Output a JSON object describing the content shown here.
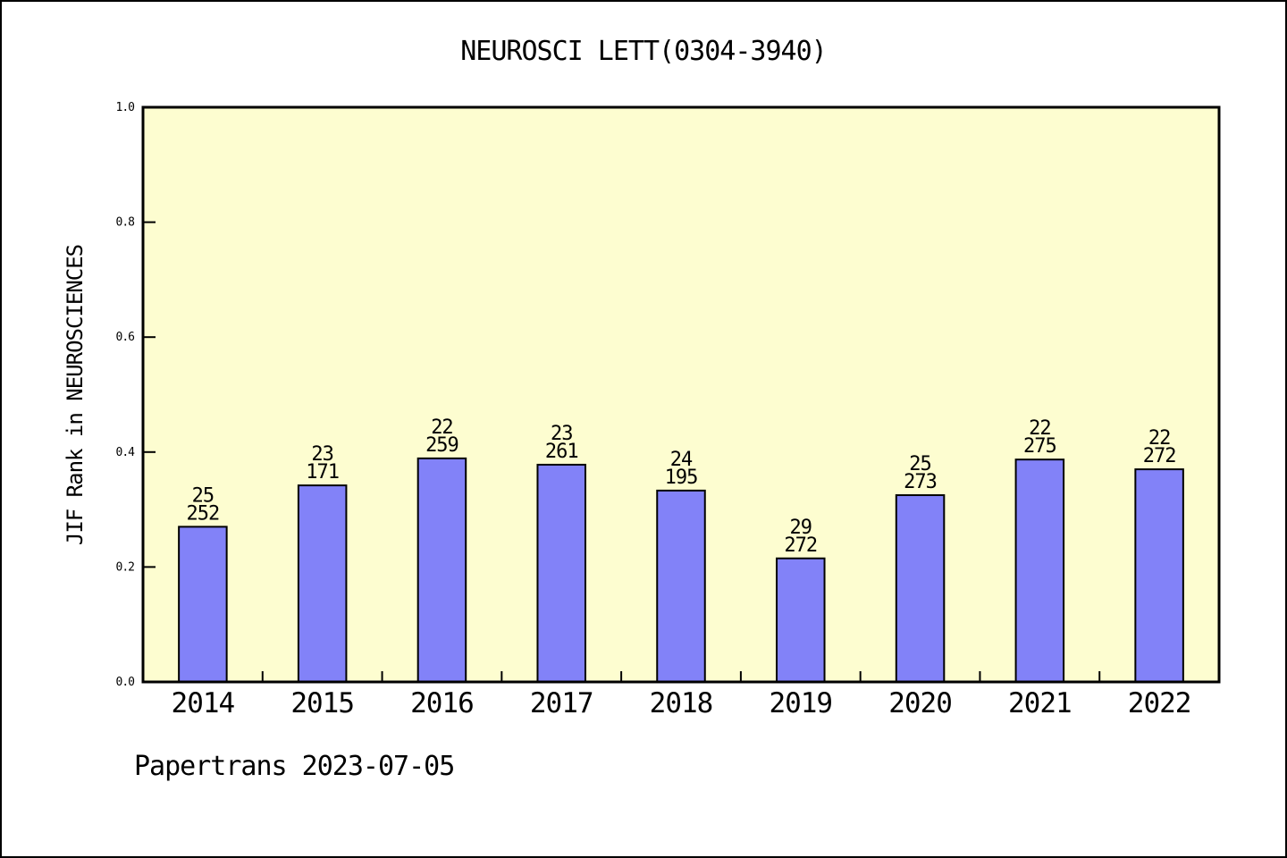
{
  "chart_data": {
    "type": "bar",
    "title": "NEUROSCI LETT(0304-3940)",
    "ylabel": "JIF Rank in NEUROSCIENCES",
    "xlabel": "",
    "footer": "Papertrans 2023-07-05",
    "categories": [
      "2014",
      "2015",
      "2016",
      "2017",
      "2018",
      "2019",
      "2020",
      "2021",
      "2022"
    ],
    "values": [
      0.27,
      0.342,
      0.389,
      0.378,
      0.333,
      0.215,
      0.325,
      0.387,
      0.37
    ],
    "bar_label_top": [
      "25",
      "23",
      "22",
      "23",
      "24",
      "29",
      "25",
      "22",
      "22"
    ],
    "bar_label_bottom": [
      "252",
      "171",
      "259",
      "261",
      "195",
      "272",
      "273",
      "275",
      "272"
    ],
    "ylim": [
      0.0,
      1.0
    ],
    "ytick_step": 0.2,
    "ytick_labels": [
      "0.0",
      "0.2",
      "0.4",
      "0.6",
      "0.8",
      "1.0"
    ],
    "grid": false,
    "legend_position": "none",
    "colors": {
      "bar_fill": "#8282F8",
      "bar_edge": "#000000",
      "plot_bg": "#FDFDD0",
      "frame": "#000000",
      "text": "#000000",
      "page_bg": "#FFFFFF"
    }
  }
}
